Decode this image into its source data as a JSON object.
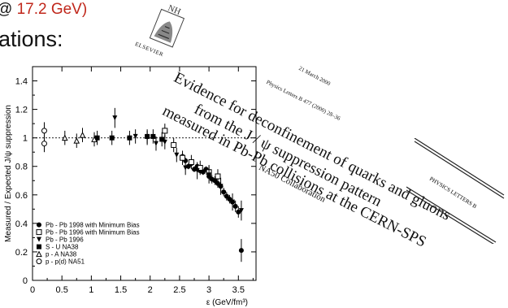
{
  "slide": {
    "title_prefix": "@ ",
    "title_energy": "17.2 GeV)",
    "subtitle": "ations:"
  },
  "publisher": {
    "logo_initials": "NH",
    "name": "ELSEVIER"
  },
  "paper": {
    "date": "21 March 2000",
    "citation": "Physics Letters B 477 (2000) 28–36",
    "title_lines": [
      "Evidence for deconfinement of quarks and gluons",
      "from the J / ψ suppression pattern",
      "measured in Pb-Pb collisions at the CERN-SPS"
    ],
    "collaboration": "NA50 Collaboration",
    "journal": "PHYSICS LETTERS B"
  },
  "chart_data": {
    "type": "scatter",
    "ylabel": "Measured / Expected  J/ψ suppression",
    "xlabel": "ε  (GeV/fm³)",
    "xlim": [
      0,
      3.8
    ],
    "ylim": [
      0,
      1.5
    ],
    "xticks": [
      "0",
      "0.5",
      "1",
      "1.5",
      "2",
      "2.5",
      "3",
      "3.5"
    ],
    "yticks": [
      "0",
      "0.2",
      "0.4",
      "0.6",
      "0.8",
      "1",
      "1.2",
      "1.4"
    ],
    "reference_line": 1.0,
    "legend_position": "bottom-left",
    "series": [
      {
        "name": "Pb - Pb 1998 with Minimum Bias",
        "marker": "filled-circle",
        "points": [
          [
            2.55,
            0.87,
            0.02
          ],
          [
            2.6,
            0.84,
            0.02
          ],
          [
            2.65,
            0.8,
            0.02
          ],
          [
            2.7,
            0.82,
            0.02
          ],
          [
            2.75,
            0.78,
            0.02
          ],
          [
            2.8,
            0.8,
            0.02
          ],
          [
            2.85,
            0.77,
            0.02
          ],
          [
            2.9,
            0.76,
            0.02
          ],
          [
            2.95,
            0.78,
            0.02
          ],
          [
            3.0,
            0.73,
            0.02
          ],
          [
            3.05,
            0.71,
            0.03
          ],
          [
            3.1,
            0.7,
            0.03
          ],
          [
            3.15,
            0.68,
            0.03
          ],
          [
            3.2,
            0.66,
            0.03
          ],
          [
            3.25,
            0.62,
            0.03
          ],
          [
            3.3,
            0.59,
            0.03
          ],
          [
            3.35,
            0.57,
            0.03
          ],
          [
            3.4,
            0.55,
            0.03
          ],
          [
            3.45,
            0.52,
            0.04
          ],
          [
            3.5,
            0.48,
            0.04
          ],
          [
            3.55,
            0.21,
            0.08
          ]
        ]
      },
      {
        "name": "Pb - Pb 1996 with Minimum Bias",
        "marker": "open-square",
        "points": [
          [
            2.25,
            1.05,
            0.05
          ],
          [
            2.4,
            0.95,
            0.05
          ],
          [
            2.55,
            0.86,
            0.05
          ],
          [
            2.7,
            0.83,
            0.05
          ],
          [
            2.85,
            0.79,
            0.05
          ],
          [
            3.0,
            0.76,
            0.05
          ],
          [
            3.15,
            0.73,
            0.05
          ]
        ]
      },
      {
        "name": "Pb - Pb 1996",
        "marker": "filled-triangle-down",
        "points": [
          [
            1.4,
            1.14,
            0.07
          ],
          [
            1.75,
            1.01,
            0.05
          ],
          [
            1.95,
            1.0,
            0.05
          ],
          [
            2.1,
            0.96,
            0.05
          ],
          [
            2.25,
            0.97,
            0.05
          ],
          [
            2.45,
            0.88,
            0.05
          ],
          [
            2.6,
            0.79,
            0.05
          ],
          [
            2.8,
            0.77,
            0.06
          ],
          [
            3.0,
            0.74,
            0.06
          ],
          [
            3.2,
            0.66,
            0.06
          ],
          [
            3.4,
            0.55,
            0.06
          ],
          [
            3.55,
            0.49,
            0.07
          ]
        ]
      },
      {
        "name": "S - U      NA38",
        "marker": "filled-square",
        "points": [
          [
            1.1,
            1.0,
            0.05
          ],
          [
            1.35,
            1.0,
            0.05
          ],
          [
            1.65,
            1.0,
            0.05
          ],
          [
            1.95,
            1.01,
            0.05
          ],
          [
            2.05,
            1.01,
            0.05
          ],
          [
            2.2,
            0.99,
            0.05
          ]
        ]
      },
      {
        "name": "p - A     NA38",
        "marker": "open-triangle-up",
        "points": [
          [
            0.55,
            1.0,
            0.05
          ],
          [
            0.75,
            0.98,
            0.05
          ],
          [
            0.85,
            1.02,
            0.05
          ],
          [
            1.05,
            0.99,
            0.05
          ]
        ]
      },
      {
        "name": "p - p(d)  NA51",
        "marker": "open-circle",
        "points": [
          [
            0.2,
            1.05,
            0.06
          ],
          [
            0.2,
            0.96,
            0.06
          ]
        ]
      }
    ]
  }
}
